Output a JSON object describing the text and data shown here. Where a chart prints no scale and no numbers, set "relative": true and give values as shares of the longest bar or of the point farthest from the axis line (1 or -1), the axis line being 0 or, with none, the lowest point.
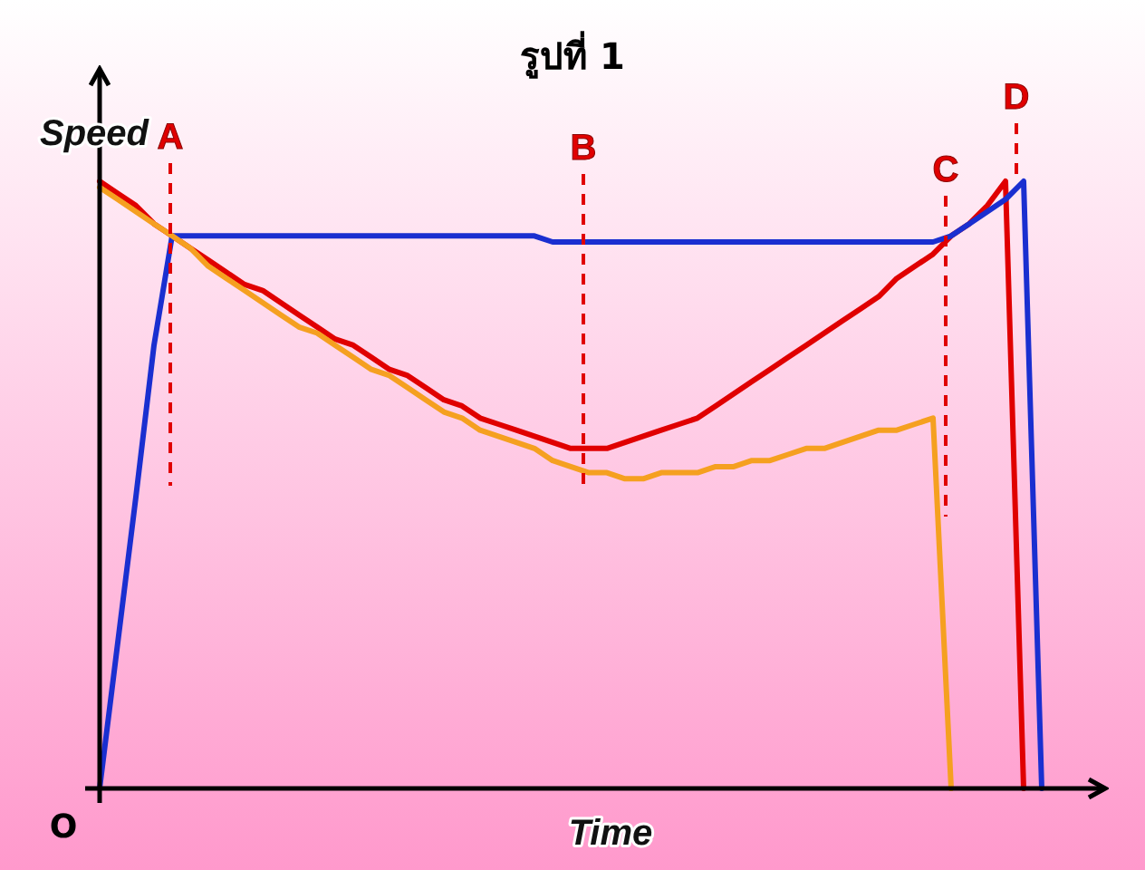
{
  "chart_data": {
    "type": "line",
    "title": "รูปที่ 1",
    "xlabel": "Time",
    "ylabel": "Speed",
    "relative": true,
    "marker": "none",
    "line_style": "solid",
    "annotations": [
      "O",
      "A",
      "B",
      "C",
      "D"
    ],
    "categories": [
      null,
      null,
      null,
      null,
      null,
      null,
      null,
      null,
      null,
      null,
      null,
      null,
      null,
      null,
      null,
      null,
      null,
      null,
      null,
      null,
      null,
      null,
      null,
      null,
      null,
      null,
      null,
      null,
      null,
      null,
      null,
      null,
      null,
      null,
      null,
      null,
      null,
      null,
      null,
      null,
      null,
      null,
      null,
      null,
      null,
      null,
      null,
      null,
      null,
      null,
      null,
      null,
      null,
      null,
      null,
      null
    ],
    "series": [
      {
        "color": "#e00000",
        "values": [
          1.0,
          0.98,
          0.96,
          0.93,
          0.91,
          0.89,
          0.87,
          0.85,
          0.83,
          0.82,
          0.8,
          0.78,
          0.76,
          0.74,
          0.73,
          0.71,
          0.69,
          0.68,
          0.66,
          0.64,
          0.63,
          0.61,
          0.6,
          0.59,
          0.58,
          0.57,
          0.56,
          0.56,
          0.56,
          0.57,
          0.58,
          0.59,
          0.6,
          0.61,
          0.63,
          0.65,
          0.67,
          0.69,
          0.71,
          0.73,
          0.75,
          0.77,
          0.79,
          0.81,
          0.84,
          0.86,
          0.88,
          0.91,
          0.93,
          0.96,
          1.0,
          0,
          null,
          null,
          null,
          null
        ]
      },
      {
        "color": "#1a2fd0",
        "values": [
          0,
          0.24,
          0.48,
          0.73,
          0.91,
          0.91,
          0.91,
          0.91,
          0.91,
          0.91,
          0.91,
          0.91,
          0.91,
          0.91,
          0.91,
          0.91,
          0.91,
          0.91,
          0.91,
          0.91,
          0.91,
          0.91,
          0.91,
          0.91,
          0.91,
          0.9,
          0.9,
          0.9,
          0.9,
          0.9,
          0.9,
          0.9,
          0.9,
          0.9,
          0.9,
          0.9,
          0.9,
          0.9,
          0.9,
          0.9,
          0.9,
          0.9,
          0.9,
          0.9,
          0.9,
          0.9,
          0.9,
          0.91,
          0.93,
          0.95,
          0.97,
          1.0,
          0,
          null,
          null,
          null
        ]
      },
      {
        "color": "#f5a020",
        "values": [
          0.99,
          0.97,
          0.95,
          0.93,
          0.91,
          0.89,
          0.86,
          0.84,
          0.82,
          0.8,
          0.78,
          0.76,
          0.75,
          0.73,
          0.71,
          0.69,
          0.68,
          0.66,
          0.64,
          0.62,
          0.61,
          0.59,
          0.58,
          0.57,
          0.56,
          0.54,
          0.53,
          0.52,
          0.52,
          0.51,
          0.51,
          0.52,
          0.52,
          0.52,
          0.53,
          0.53,
          0.54,
          0.54,
          0.55,
          0.56,
          0.56,
          0.57,
          0.58,
          0.59,
          0.59,
          0.6,
          0.61,
          0,
          null,
          null,
          null,
          null,
          null,
          null,
          null,
          null
        ]
      }
    ]
  }
}
